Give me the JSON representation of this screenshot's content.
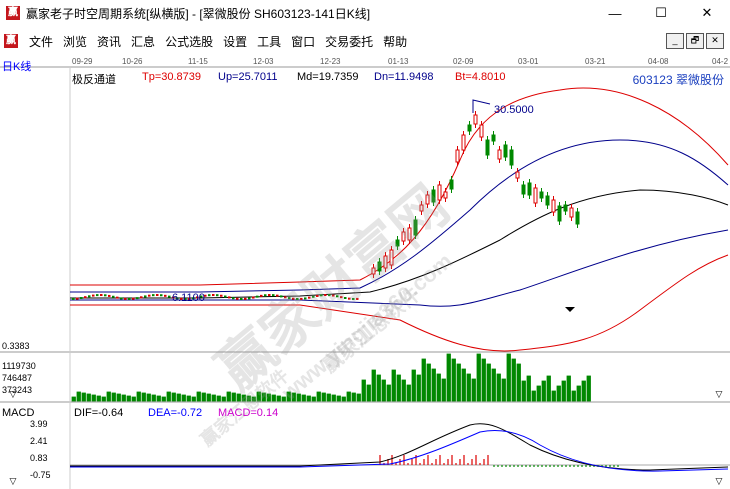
{
  "window": {
    "logo": "赢",
    "title": "赢家老子时空周期系统[纵横版] - [翠微股份  SH603123-141日K线]",
    "minimize": "—",
    "maximize": "☐",
    "close": "✕"
  },
  "menu": {
    "logo": "赢",
    "items": [
      "文件",
      "浏览",
      "资讯",
      "汇息",
      "公式选股",
      "设置",
      "工具",
      "窗口",
      "交易委托",
      "帮助"
    ],
    "mdi": [
      "_",
      "🗗",
      "✕"
    ]
  },
  "chart": {
    "period_label": "日K线",
    "dates": [
      "09-29",
      "10-26",
      "11-15",
      "12-03",
      "12-23",
      "01-13",
      "02-09",
      "03-01",
      "03-21",
      "04-08",
      "04-2"
    ],
    "indicator": "极反通道",
    "tp": "Tp=30.8739",
    "up": "Up=25.7011",
    "md": "Md=19.7359",
    "dn": "Dn=11.9498",
    "bt": "Bt=4.8010",
    "stock": "603123  翠微股份",
    "high_marker": "30.5000",
    "low_marker": "6.1100",
    "price_floor": "0.3383",
    "volume_ticks": [
      "1119730",
      "746487",
      "373243"
    ],
    "macd": {
      "label": "MACD",
      "dif": "DIF=-0.64",
      "dea": "DEA=-0.72",
      "macd": "MACD=0.14",
      "ticks": [
        "3.99",
        "2.41",
        "0.83",
        "-0.75"
      ]
    },
    "watermark": {
      "main": "赢家财富网",
      "url": "www.yingjia360.com",
      "soft": "赢家江恩软件",
      "soft2": "赢家江恩软件"
    }
  }
}
